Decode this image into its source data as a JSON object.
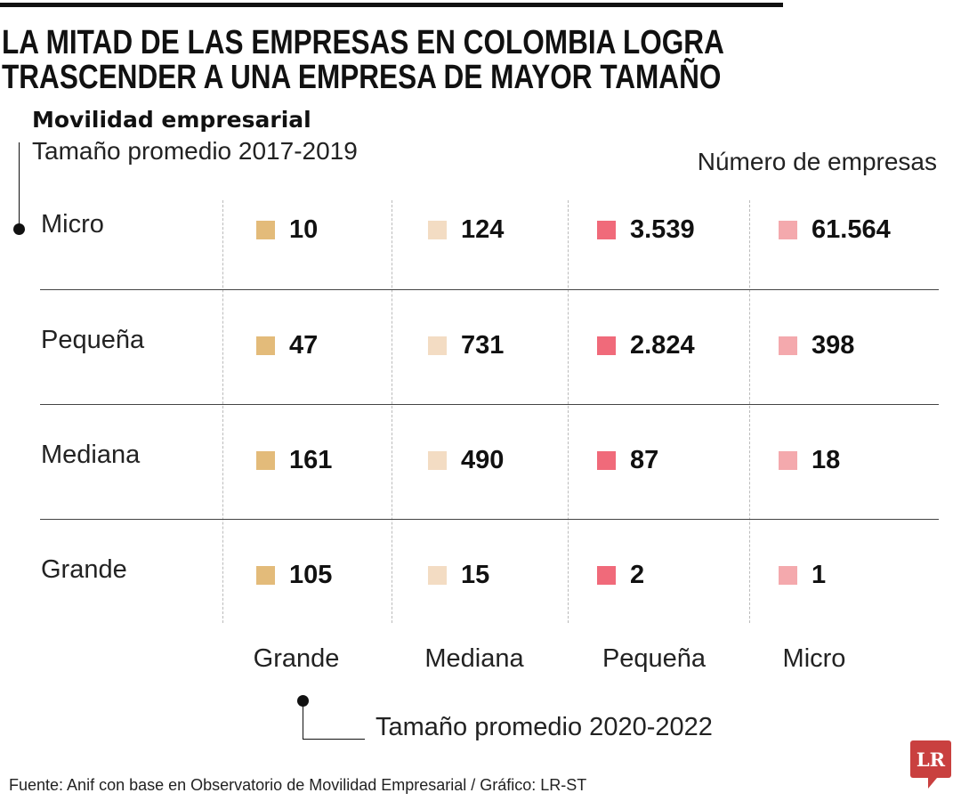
{
  "title_lines": [
    "LA MITAD DE LAS EMPRESAS EN COLOMBIA LOGRA",
    "TRASCENDER A UNA EMPRESA DE MAYOR TAMAÑO"
  ],
  "subtitle": "Movilidad empresarial",
  "footer": "Fuente: Anif con base en Observatorio de Movilidad Empresarial / Gráfico: LR-ST",
  "logo": "LR",
  "colors": {
    "Grande": "#e3bb7a",
    "Mediana": "#f3dcc3",
    "Pequeña": "#f06a7a",
    "Micro": "#f4a9ad",
    "logo": "#c9403f"
  },
  "chart_data": {
    "type": "table",
    "row_axis_label": "Tamaño promedio 2017-2019",
    "col_axis_label": "Tamaño promedio 2020-2022",
    "units": "Número de empresas",
    "rows": [
      "Micro",
      "Pequeña",
      "Mediana",
      "Grande"
    ],
    "columns": [
      "Grande",
      "Mediana",
      "Pequeña",
      "Micro"
    ],
    "values": [
      [
        "10",
        "124",
        "3.539",
        "61.564"
      ],
      [
        "47",
        "731",
        "2.824",
        "398"
      ],
      [
        "161",
        "490",
        "87",
        "18"
      ],
      [
        "105",
        "15",
        "2",
        "1"
      ]
    ]
  }
}
